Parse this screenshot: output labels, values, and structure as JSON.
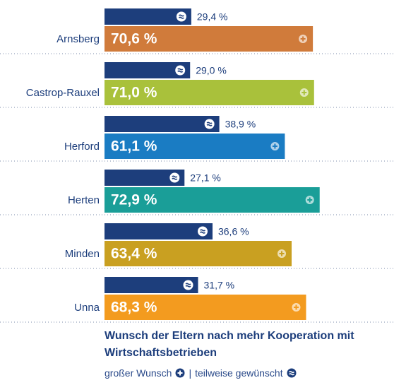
{
  "chart_data": {
    "type": "bar",
    "orientation": "horizontal",
    "title": "Wunsch der Eltern nach mehr Kooperation mit Wirtschaftsbetrieben",
    "categories": [
      "Arnsberg",
      "Castrop-Rauxel",
      "Herford",
      "Herten",
      "Minden",
      "Unna"
    ],
    "xlim": [
      0,
      100
    ],
    "legend_separator": "|",
    "series": [
      {
        "name": "großer Wunsch",
        "colors": [
          "#d07b3b",
          "#a9c13b",
          "#1a7cc3",
          "#1a9e98",
          "#c9a021",
          "#f39b1f"
        ],
        "values": [
          70.6,
          71.0,
          61.1,
          72.9,
          63.4,
          68.3
        ],
        "value_labels": [
          "70,6 %",
          "71,0 %",
          "61,1 %",
          "72,9 %",
          "63,4 %",
          "68,3 %"
        ]
      },
      {
        "name": "teilweise gewünscht",
        "color": "#1d3e7c",
        "values": [
          29.4,
          29.0,
          38.9,
          27.1,
          36.6,
          31.7
        ],
        "value_labels": [
          "29,4 %",
          "29,0 %",
          "38,9 %",
          "27,1 %",
          "36,6 %",
          "31,7 %"
        ]
      }
    ]
  }
}
